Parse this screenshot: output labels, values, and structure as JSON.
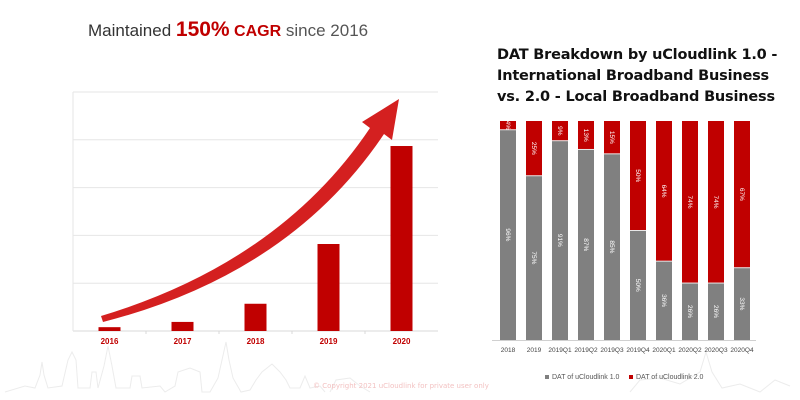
{
  "headline": {
    "prefix": "Maintained ",
    "highlight_number": "150%",
    "highlight_text": " CAGR",
    "suffix": " since 2016"
  },
  "colors": {
    "accent_red": "#c00000",
    "arrow_red": "#d42020",
    "gray": "#808080",
    "gridline": "#e6e6e6"
  },
  "copyright": "© Copyright 2021 uCloudlink for private user only",
  "chart_data": [
    {
      "type": "bar",
      "title": "Maintained 150% CAGR since 2016",
      "xlabel": "",
      "ylabel": "",
      "categories": [
        "2016",
        "2017",
        "2018",
        "2019",
        "2020"
      ],
      "values": [
        0.08,
        0.19,
        0.57,
        1.82,
        3.87
      ],
      "value_units": "relative (gridline units; axis unlabeled)",
      "ylim": [
        0,
        5
      ],
      "grid": true,
      "annotation": "upward growth arrow",
      "bar_color": "#c00000"
    },
    {
      "type": "bar",
      "stacked": true,
      "percent": true,
      "title": "DAT Breakdown by uCloudlink 1.0 - International Broadband Business vs. 2.0 - Local Broadband Business",
      "title_lines": [
        "DAT Breakdown by uCloudlink 1.0 -",
        "International Broadband Business",
        "vs. 2.0 - Local Broadband Business"
      ],
      "categories": [
        "2018",
        "2019",
        "2019Q1",
        "2019Q2",
        "2019Q3",
        "2019Q4",
        "2020Q1",
        "2020Q2",
        "2020Q3",
        "2020Q4"
      ],
      "series": [
        {
          "name": "DAT of uCloudlink 1.0",
          "color": "#808080",
          "values": [
            96,
            75,
            91,
            87,
            85,
            50,
            36,
            26,
            26,
            33
          ]
        },
        {
          "name": "DAT of uCloudlink 2.0",
          "color": "#c00000",
          "values": [
            4,
            25,
            9,
            13,
            15,
            50,
            64,
            74,
            74,
            67
          ]
        }
      ],
      "ylim": [
        0,
        100
      ],
      "grid": false,
      "legend": "bottom"
    }
  ]
}
